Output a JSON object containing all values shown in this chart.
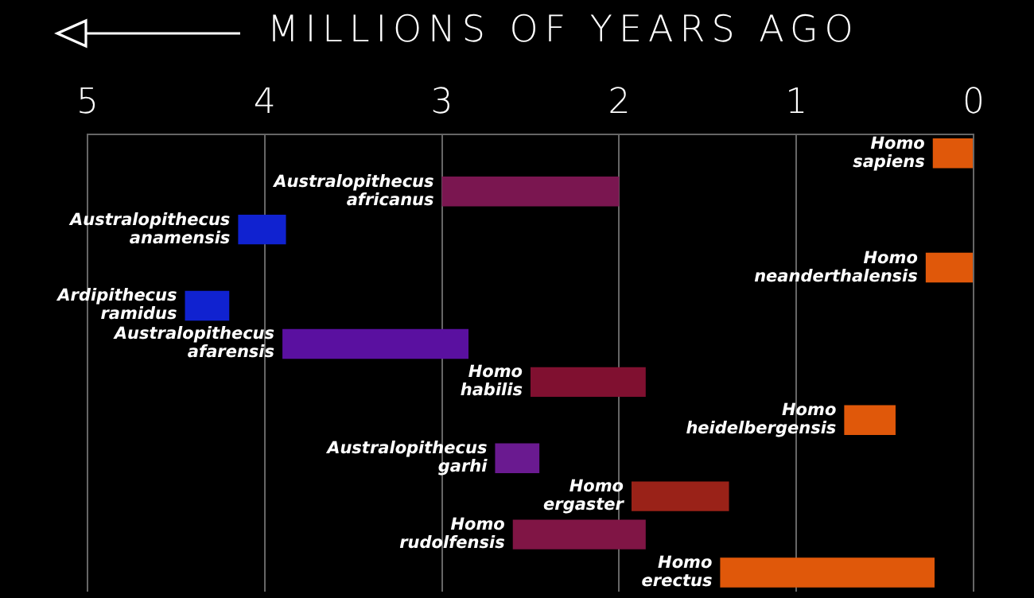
{
  "chart_data": {
    "type": "bar",
    "orientation": "horizontal",
    "xlabel": "MILLIONS OF YEARS AGO",
    "categories": [
      "Homo sapiens",
      "Australopithecus africanus",
      "Australopithecus anamensis",
      "Homo neanderthalensis",
      "Ardipithecus ramidus",
      "Australopithecus afarensis",
      "Homo habilis",
      "Homo heidelbergensis",
      "Australopithecus garhi",
      "Homo ergaster",
      "Homo rudolfensis",
      "Homo erectus"
    ],
    "base": [
      0.23,
      3.0,
      4.15,
      0.27,
      4.45,
      3.9,
      2.5,
      0.73,
      2.7,
      1.93,
      2.6,
      1.43
    ],
    "values": [
      -0.23,
      -1.0,
      -0.27,
      -0.27,
      -0.25,
      -1.05,
      -0.65,
      -0.29,
      -0.25,
      -0.55,
      -0.75,
      -1.21
    ],
    "colors": [
      "#e0580a",
      "#7a1650",
      "#1022d0",
      "#e0580a",
      "#1022d0",
      "#5a10a0",
      "#801030",
      "#e0580a",
      "#6a1a90",
      "#9a2218",
      "#801545",
      "#e0580a"
    ],
    "xlim": [
      5,
      0
    ],
    "xticks": [
      5,
      4,
      3,
      2,
      1,
      0
    ],
    "grid": "x",
    "tick_labels": "x"
  }
}
